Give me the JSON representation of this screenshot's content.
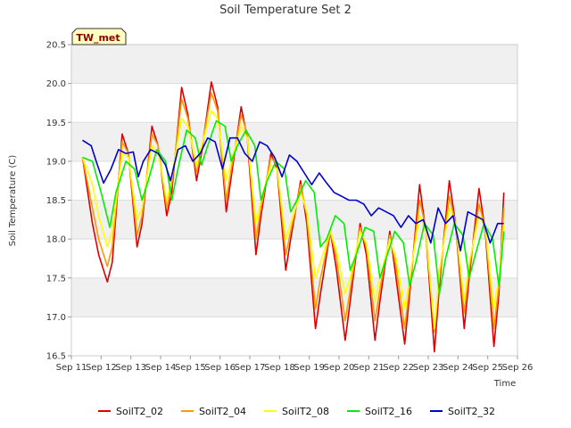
{
  "chart_data": {
    "type": "line",
    "title": "Soil Temperature Set 2",
    "xlabel": "Time",
    "ylabel": "Soil Temperature (C)",
    "ylim": [
      16.5,
      20.5
    ],
    "xlim": [
      "Sep 11",
      "Sep 26"
    ],
    "y_ticks": [
      "16.5",
      "17.0",
      "17.5",
      "18.0",
      "18.5",
      "19.0",
      "19.5",
      "20.0",
      "20.5"
    ],
    "x_ticks": [
      "Sep 11",
      "Sep 12",
      "Sep 13",
      "Sep 14",
      "Sep 15",
      "Sep 16",
      "Sep 17",
      "Sep 18",
      "Sep 19",
      "Sep 20",
      "Sep 21",
      "Sep 22",
      "Sep 23",
      "Sep 24",
      "Sep 25",
      "Sep 26"
    ],
    "site_badge": "TW_met",
    "grid": "horizontal bands",
    "legend_position": "bottom",
    "series": [
      {
        "name": "SoilT2_02",
        "color": "#dd0000",
        "x": [
          "Sep 11 09:00",
          "Sep 11 17:00",
          "Sep 11 22:00",
          "Sep 12 05:00",
          "Sep 12 09:00",
          "Sep 12 17:00",
          "Sep 12 22:00",
          "Sep 13 05:00",
          "Sep 13 09:00",
          "Sep 13 17:00",
          "Sep 13 22:00",
          "Sep 14 05:00",
          "Sep 14 09:00",
          "Sep 14 17:00",
          "Sep 14 22:00",
          "Sep 15 05:00",
          "Sep 15 09:00",
          "Sep 15 17:00",
          "Sep 15 22:00",
          "Sep 16 05:00",
          "Sep 16 09:00",
          "Sep 16 17:00",
          "Sep 16 22:00",
          "Sep 17 05:00",
          "Sep 17 09:00",
          "Sep 17 17:00",
          "Sep 17 22:00",
          "Sep 18 05:00",
          "Sep 18 09:00",
          "Sep 18 17:00",
          "Sep 18 22:00",
          "Sep 19 05:00",
          "Sep 19 09:00",
          "Sep 19 17:00",
          "Sep 19 22:00",
          "Sep 20 05:00",
          "Sep 20 09:00",
          "Sep 20 17:00",
          "Sep 20 22:00",
          "Sep 21 05:00",
          "Sep 21 09:00",
          "Sep 21 17:00",
          "Sep 21 22:00",
          "Sep 22 05:00",
          "Sep 22 09:00",
          "Sep 22 17:00",
          "Sep 22 22:00",
          "Sep 23 05:00",
          "Sep 23 09:00",
          "Sep 23 17:00",
          "Sep 23 22:00",
          "Sep 24 05:00",
          "Sep 24 09:00",
          "Sep 24 17:00",
          "Sep 24 22:00",
          "Sep 25 05:00",
          "Sep 25 09:00",
          "Sep 25 13:00"
        ],
        "values": [
          19.05,
          18.2,
          17.8,
          17.45,
          17.7,
          19.35,
          19.1,
          17.9,
          18.2,
          19.45,
          19.2,
          18.3,
          18.6,
          19.95,
          19.6,
          18.75,
          19.1,
          20.02,
          19.7,
          18.35,
          18.8,
          19.7,
          19.3,
          17.8,
          18.3,
          19.1,
          18.9,
          17.6,
          18.0,
          18.75,
          18.2,
          16.85,
          17.3,
          18.1,
          17.6,
          16.7,
          17.2,
          18.2,
          17.8,
          16.7,
          17.2,
          18.1,
          17.5,
          16.65,
          17.3,
          18.7,
          18.1,
          16.55,
          17.4,
          18.75,
          18.2,
          16.85,
          17.5,
          18.65,
          18.1,
          16.62,
          17.3,
          18.6
        ]
      },
      {
        "name": "SoilT2_04",
        "color": "#ff9900",
        "x": [
          "Sep 11 09:00",
          "Sep 11 17:00",
          "Sep 11 22:00",
          "Sep 12 05:00",
          "Sep 12 09:00",
          "Sep 12 17:00",
          "Sep 12 22:00",
          "Sep 13 05:00",
          "Sep 13 09:00",
          "Sep 13 17:00",
          "Sep 13 22:00",
          "Sep 14 05:00",
          "Sep 14 09:00",
          "Sep 14 17:00",
          "Sep 14 22:00",
          "Sep 15 05:00",
          "Sep 15 09:00",
          "Sep 15 17:00",
          "Sep 15 22:00",
          "Sep 16 05:00",
          "Sep 16 09:00",
          "Sep 16 17:00",
          "Sep 16 22:00",
          "Sep 17 05:00",
          "Sep 17 09:00",
          "Sep 17 17:00",
          "Sep 17 22:00",
          "Sep 18 05:00",
          "Sep 18 09:00",
          "Sep 18 17:00",
          "Sep 18 22:00",
          "Sep 19 05:00",
          "Sep 19 09:00",
          "Sep 19 17:00",
          "Sep 19 22:00",
          "Sep 20 05:00",
          "Sep 20 09:00",
          "Sep 20 17:00",
          "Sep 20 22:00",
          "Sep 21 05:00",
          "Sep 21 09:00",
          "Sep 21 17:00",
          "Sep 21 22:00",
          "Sep 22 05:00",
          "Sep 22 09:00",
          "Sep 22 17:00",
          "Sep 22 22:00",
          "Sep 23 05:00",
          "Sep 23 09:00",
          "Sep 23 17:00",
          "Sep 23 22:00",
          "Sep 24 05:00",
          "Sep 24 09:00",
          "Sep 24 17:00",
          "Sep 24 22:00",
          "Sep 25 05:00",
          "Sep 25 09:00",
          "Sep 25 13:00"
        ],
        "values": [
          19.05,
          18.4,
          18.0,
          17.65,
          17.9,
          19.25,
          19.1,
          18.05,
          18.3,
          19.35,
          19.2,
          18.4,
          18.7,
          19.8,
          19.55,
          18.85,
          19.15,
          19.88,
          19.65,
          18.5,
          18.9,
          19.6,
          19.35,
          18.0,
          18.4,
          19.05,
          18.95,
          17.8,
          18.1,
          18.7,
          18.3,
          17.1,
          17.5,
          18.1,
          17.75,
          16.95,
          17.35,
          18.15,
          17.9,
          16.95,
          17.35,
          18.05,
          17.65,
          16.85,
          17.4,
          18.5,
          18.15,
          16.8,
          17.5,
          18.55,
          18.2,
          17.05,
          17.6,
          18.45,
          18.15,
          16.85,
          17.4,
          18.4
        ]
      },
      {
        "name": "SoilT2_08",
        "color": "#ffff00",
        "x": [
          "Sep 11 09:00",
          "Sep 11 17:00",
          "Sep 11 22:00",
          "Sep 12 05:00",
          "Sep 12 09:00",
          "Sep 12 17:00",
          "Sep 12 22:00",
          "Sep 13 05:00",
          "Sep 13 09:00",
          "Sep 13 17:00",
          "Sep 13 22:00",
          "Sep 14 05:00",
          "Sep 14 09:00",
          "Sep 14 17:00",
          "Sep 14 22:00",
          "Sep 15 05:00",
          "Sep 15 09:00",
          "Sep 15 17:00",
          "Sep 15 22:00",
          "Sep 16 05:00",
          "Sep 16 09:00",
          "Sep 16 17:00",
          "Sep 16 22:00",
          "Sep 17 05:00",
          "Sep 17 09:00",
          "Sep 17 17:00",
          "Sep 17 22:00",
          "Sep 18 05:00",
          "Sep 18 09:00",
          "Sep 18 17:00",
          "Sep 18 22:00",
          "Sep 19 05:00",
          "Sep 19 09:00",
          "Sep 19 17:00",
          "Sep 19 22:00",
          "Sep 20 05:00",
          "Sep 20 09:00",
          "Sep 20 17:00",
          "Sep 20 22:00",
          "Sep 21 05:00",
          "Sep 21 09:00",
          "Sep 21 17:00",
          "Sep 21 22:00",
          "Sep 22 05:00",
          "Sep 22 09:00",
          "Sep 22 17:00",
          "Sep 22 22:00",
          "Sep 23 05:00",
          "Sep 23 09:00",
          "Sep 23 17:00",
          "Sep 23 22:00",
          "Sep 24 05:00",
          "Sep 24 09:00",
          "Sep 24 17:00",
          "Sep 24 22:00",
          "Sep 25 05:00",
          "Sep 25 09:00",
          "Sep 25 13:00"
        ],
        "values": [
          19.05,
          18.7,
          18.3,
          17.9,
          18.1,
          19.1,
          19.05,
          18.25,
          18.4,
          19.2,
          19.1,
          18.5,
          18.8,
          19.55,
          19.45,
          18.95,
          19.2,
          19.65,
          19.55,
          18.75,
          19.0,
          19.45,
          19.3,
          18.2,
          18.5,
          18.95,
          18.9,
          18.0,
          18.2,
          18.6,
          18.35,
          17.5,
          17.7,
          18.1,
          17.85,
          17.3,
          17.5,
          18.1,
          17.95,
          17.2,
          17.5,
          18.0,
          17.75,
          17.1,
          17.5,
          18.3,
          18.1,
          16.85,
          17.6,
          18.4,
          18.2,
          17.2,
          17.7,
          18.3,
          18.15,
          17.1,
          17.5,
          18.2
        ]
      },
      {
        "name": "SoilT2_16",
        "color": "#00ee00",
        "x": [
          "Sep 11 09:00",
          "Sep 11 17:00",
          "Sep 12 00:00",
          "Sep 12 07:00",
          "Sep 12 12:00",
          "Sep 12 20:00",
          "Sep 13 03:00",
          "Sep 13 09:00",
          "Sep 13 14:00",
          "Sep 13 21:00",
          "Sep 14 04:00",
          "Sep 14 09:00",
          "Sep 14 14:00",
          "Sep 14 21:00",
          "Sep 15 04:00",
          "Sep 15 09:00",
          "Sep 15 14:00",
          "Sep 15 21:00",
          "Sep 16 04:00",
          "Sep 16 09:00",
          "Sep 16 14:00",
          "Sep 16 21:00",
          "Sep 17 04:00",
          "Sep 17 09:00",
          "Sep 17 14:00",
          "Sep 17 21:00",
          "Sep 18 04:00",
          "Sep 18 09:00",
          "Sep 18 14:00",
          "Sep 18 21:00",
          "Sep 19 04:00",
          "Sep 19 09:00",
          "Sep 19 14:00",
          "Sep 19 21:00",
          "Sep 20 04:00",
          "Sep 20 09:00",
          "Sep 20 14:00",
          "Sep 20 21:00",
          "Sep 21 04:00",
          "Sep 21 09:00",
          "Sep 21 14:00",
          "Sep 21 21:00",
          "Sep 22 04:00",
          "Sep 22 09:00",
          "Sep 22 14:00",
          "Sep 22 21:00",
          "Sep 23 04:00",
          "Sep 23 09:00",
          "Sep 23 14:00",
          "Sep 23 21:00",
          "Sep 24 04:00",
          "Sep 24 09:00",
          "Sep 24 14:00",
          "Sep 24 21:00",
          "Sep 25 04:00",
          "Sep 25 09:00",
          "Sep 25 13:00"
        ],
        "values": [
          19.05,
          19.0,
          18.6,
          18.15,
          18.6,
          19.0,
          18.9,
          18.5,
          18.75,
          19.15,
          19.0,
          18.5,
          18.9,
          19.4,
          19.3,
          18.95,
          19.2,
          19.52,
          19.45,
          19.0,
          19.2,
          19.4,
          19.2,
          18.5,
          18.75,
          19.0,
          18.9,
          18.35,
          18.5,
          18.75,
          18.6,
          17.9,
          18.0,
          18.3,
          18.2,
          17.6,
          17.8,
          18.15,
          18.1,
          17.5,
          17.75,
          18.1,
          17.95,
          17.4,
          17.7,
          18.2,
          18.05,
          17.3,
          17.75,
          18.2,
          18.05,
          17.5,
          17.8,
          18.2,
          18.0,
          17.4,
          18.1
        ]
      },
      {
        "name": "SoilT2_32",
        "color": "#0000cc",
        "x": [
          "Sep 11 09:00",
          "Sep 11 16:00",
          "Sep 11 20:00",
          "Sep 12 02:00",
          "Sep 12 08:00",
          "Sep 12 14:00",
          "Sep 12 20:00",
          "Sep 13 02:00",
          "Sep 13 06:00",
          "Sep 13 10:00",
          "Sep 13 16:00",
          "Sep 13 22:00",
          "Sep 14 04:00",
          "Sep 14 08:00",
          "Sep 14 14:00",
          "Sep 14 20:00",
          "Sep 15 02:00",
          "Sep 15 08:00",
          "Sep 15 14:00",
          "Sep 15 20:00",
          "Sep 16 02:00",
          "Sep 16 08:00",
          "Sep 16 14:00",
          "Sep 16 20:00",
          "Sep 17 02:00",
          "Sep 17 08:00",
          "Sep 17 14:00",
          "Sep 17 20:00",
          "Sep 18 02:00",
          "Sep 18 08:00",
          "Sep 18 14:00",
          "Sep 18 20:00",
          "Sep 19 02:00",
          "Sep 19 08:00",
          "Sep 19 14:00",
          "Sep 19 20:00",
          "Sep 20 02:00",
          "Sep 20 08:00",
          "Sep 20 14:00",
          "Sep 20 20:00",
          "Sep 21 02:00",
          "Sep 21 08:00",
          "Sep 21 14:00",
          "Sep 21 20:00",
          "Sep 22 02:00",
          "Sep 22 08:00",
          "Sep 22 14:00",
          "Sep 22 20:00",
          "Sep 23 02:00",
          "Sep 23 08:00",
          "Sep 23 14:00",
          "Sep 23 20:00",
          "Sep 24 02:00",
          "Sep 24 08:00",
          "Sep 24 14:00",
          "Sep 24 20:00",
          "Sep 25 02:00",
          "Sep 25 08:00",
          "Sep 25 13:00"
        ],
        "values": [
          19.27,
          19.2,
          19.0,
          18.72,
          18.9,
          19.15,
          19.1,
          19.12,
          18.8,
          19.0,
          19.15,
          19.1,
          18.95,
          18.75,
          19.15,
          19.2,
          19.0,
          19.1,
          19.3,
          19.25,
          18.9,
          19.3,
          19.3,
          19.1,
          19.0,
          19.25,
          19.2,
          19.05,
          18.8,
          19.08,
          19.0,
          18.85,
          18.7,
          18.85,
          18.72,
          18.6,
          18.55,
          18.5,
          18.5,
          18.45,
          18.3,
          18.4,
          18.35,
          18.3,
          18.15,
          18.3,
          18.2,
          18.25,
          17.95,
          18.4,
          18.2,
          18.3,
          17.85,
          18.35,
          18.3,
          18.25,
          17.95,
          18.2,
          18.2
        ]
      }
    ]
  }
}
